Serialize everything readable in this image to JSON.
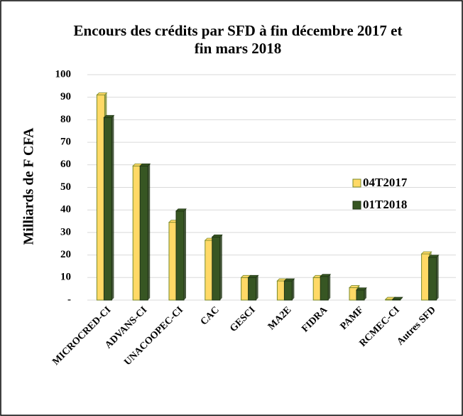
{
  "chart_data": {
    "type": "bar",
    "title": [
      "Encours des crédits par SFD à fin décembre 2017 et",
      "fin mars 2018"
    ],
    "y_label": "Milliards de F CFA",
    "categories": [
      "MICROCRED-CI",
      "ADVANS-CI",
      "UNACOOPEC-CI",
      "CAC",
      "GESCI",
      "MA2E",
      "FIDRA",
      "PAMF",
      "RCMEC-CI",
      "Autres SFD"
    ],
    "series": [
      {
        "name": "04T2017",
        "color": "#ffd966",
        "values": [
          91,
          59.5,
          34.5,
          26.5,
          10,
          8.5,
          10,
          5.5,
          0.3,
          20.5
        ]
      },
      {
        "name": "01T2018",
        "color": "#375623",
        "values": [
          81,
          59.5,
          39.5,
          28,
          10,
          8.5,
          10.5,
          4.5,
          0.3,
          19
        ]
      }
    ],
    "ylim": [
      0,
      100
    ],
    "yticks": [
      {
        "value": 0,
        "label": "-"
      },
      10,
      20,
      30,
      40,
      50,
      60,
      70,
      80,
      90,
      100
    ],
    "grid": true,
    "legend": "right"
  }
}
